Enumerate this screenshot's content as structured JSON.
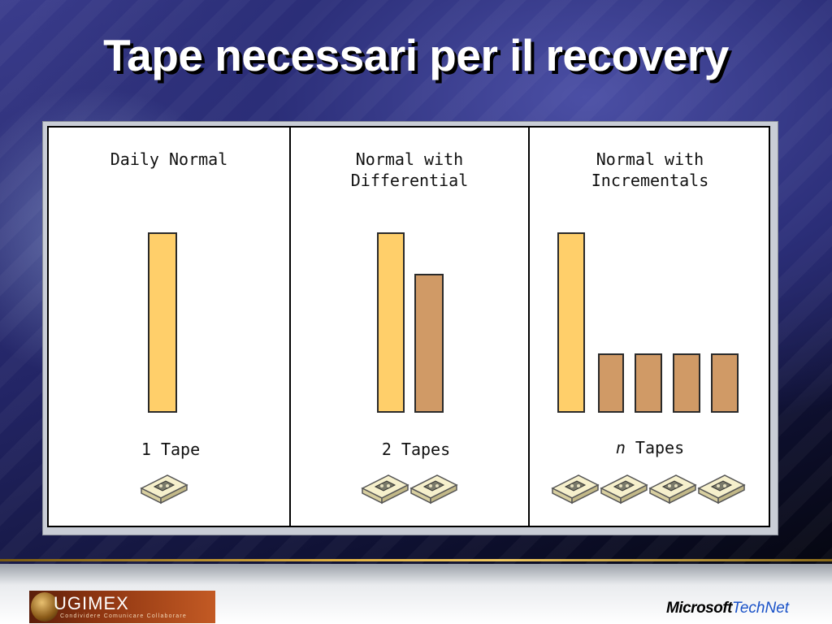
{
  "title": "Tape necessari per il recovery",
  "columns": [
    {
      "title": "Daily Normal",
      "bars": [
        {
          "kind": "normal"
        }
      ],
      "tape_label_prefix": "",
      "tape_label": "1 Tape",
      "tape_count": 1
    },
    {
      "title": "Normal with\nDifferential",
      "bars": [
        {
          "kind": "normal"
        },
        {
          "kind": "differential"
        }
      ],
      "tape_label_prefix": "",
      "tape_label": "2 Tapes",
      "tape_count": 2
    },
    {
      "title": "Normal with\nIncrementals",
      "bars": [
        {
          "kind": "normal"
        },
        {
          "kind": "incremental"
        },
        {
          "kind": "incremental"
        },
        {
          "kind": "incremental"
        },
        {
          "kind": "incremental"
        }
      ],
      "tape_label_prefix": "n",
      "tape_label": " Tapes",
      "tape_count": 4
    }
  ],
  "colors": {
    "normal_bar": "#ffcf6a",
    "backup_bar": "#d09a66"
  },
  "footer": {
    "left_logo_name": "UGIMEX",
    "left_logo_tagline": "Condividere Comunicare Collaborare",
    "right_logo_brand": "Microsoft",
    "right_logo_product": "TechNet"
  },
  "icons": {
    "tape": "tape-cartridge-icon"
  }
}
